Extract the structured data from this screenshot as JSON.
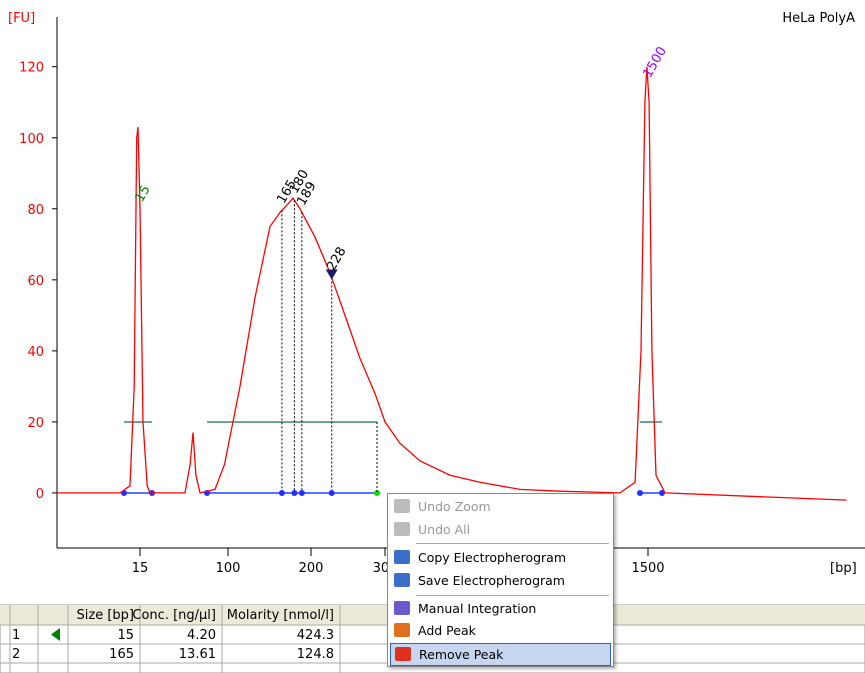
{
  "chart_data": {
    "type": "line",
    "title": "HeLa PolyA",
    "y_label": "[FU]",
    "x_label": "[bp]",
    "x": [
      5,
      12.6,
      13.8,
      14.3,
      14.6,
      14.76,
      15,
      17.9,
      22,
      24.7,
      58.5,
      63.4,
      66.2,
      69,
      73,
      87.4,
      96.6,
      114.5,
      132.5,
      150.6,
      162.7,
      171,
      178.3,
      186.7,
      205.4,
      225.7,
      246,
      266,
      286.5,
      300,
      368,
      460,
      597,
      733,
      916,
      1098,
      1372,
      1441,
      1468,
      1486,
      1495,
      1505,
      1518,
      1537,
      1578,
      2413
    ],
    "series": [
      {
        "color": "#ff0000",
        "values": [
          0,
          0,
          2,
          30,
          100,
          103,
          80,
          20,
          2,
          0,
          0,
          8,
          17,
          5,
          0,
          1,
          8,
          30,
          55,
          75,
          79,
          81,
          83,
          80,
          72,
          62,
          50,
          38,
          28,
          20,
          14,
          9,
          5,
          3,
          1,
          0.5,
          0,
          3,
          40,
          110,
          120,
          110,
          40,
          5,
          0,
          -2
        ]
      }
    ],
    "xlim": [
      5,
      2420
    ],
    "xticks": [
      15,
      100,
      200,
      300,
      1500
    ],
    "ylim": [
      -15.5,
      134
    ],
    "yticks": [
      0,
      20,
      40,
      60,
      80,
      100,
      120
    ],
    "peaks": [
      {
        "label": "15",
        "x": 15,
        "color": "#008000"
      },
      {
        "label": "165",
        "x": 165,
        "color": "#000000"
      },
      {
        "label": "180",
        "x": 180,
        "color": "#000000"
      },
      {
        "label": "189",
        "x": 189,
        "color": "#000000"
      },
      {
        "label": "228",
        "x": 228,
        "color": "#000000"
      },
      {
        "label": "1500",
        "x": 1500,
        "color": "#9900ff"
      }
    ]
  },
  "table": {
    "columns": [
      "Size [bp]",
      "Conc. [ng/µl]",
      "Molarity [nmol/l]"
    ],
    "rows": [
      [
        "1",
        "15",
        "4.20",
        "424.3"
      ],
      [
        "2",
        "165",
        "13.61",
        "124.8"
      ]
    ]
  },
  "context_menu": {
    "items": [
      "Undo Zoom",
      "Undo All",
      "Copy Electropherogram",
      "Save Electropherogram",
      "Manual Integration",
      "Add Peak",
      "Remove Peak"
    ]
  }
}
